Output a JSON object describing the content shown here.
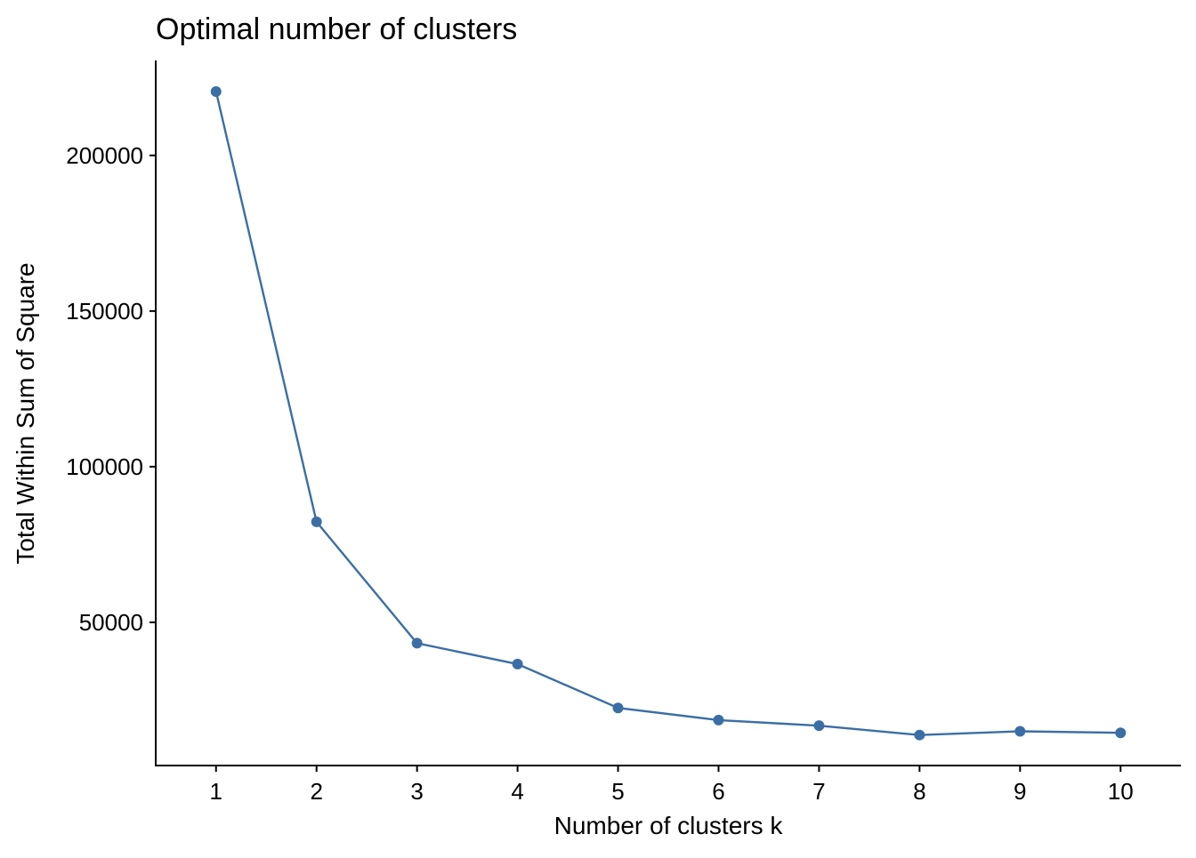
{
  "chart_data": {
    "type": "line",
    "title": "Optimal number of clusters",
    "xlabel": "Number of clusters k",
    "ylabel": "Total Within Sum of Square",
    "x": [
      "1",
      "2",
      "3",
      "4",
      "5",
      "6",
      "7",
      "8",
      "9",
      "10"
    ],
    "series": [
      {
        "values": [
          220500,
          82300,
          43300,
          36600,
          22500,
          18600,
          16800,
          13800,
          15000,
          14500
        ]
      }
    ],
    "yticks": [
      50000,
      100000,
      150000,
      200000
    ],
    "ytick_labels": [
      "50000",
      "100000",
      "150000",
      "200000"
    ],
    "ylim": [
      4000,
      230500
    ],
    "grid": false,
    "colors": {
      "series": "#3B6EA5",
      "axis": "#000000"
    }
  }
}
